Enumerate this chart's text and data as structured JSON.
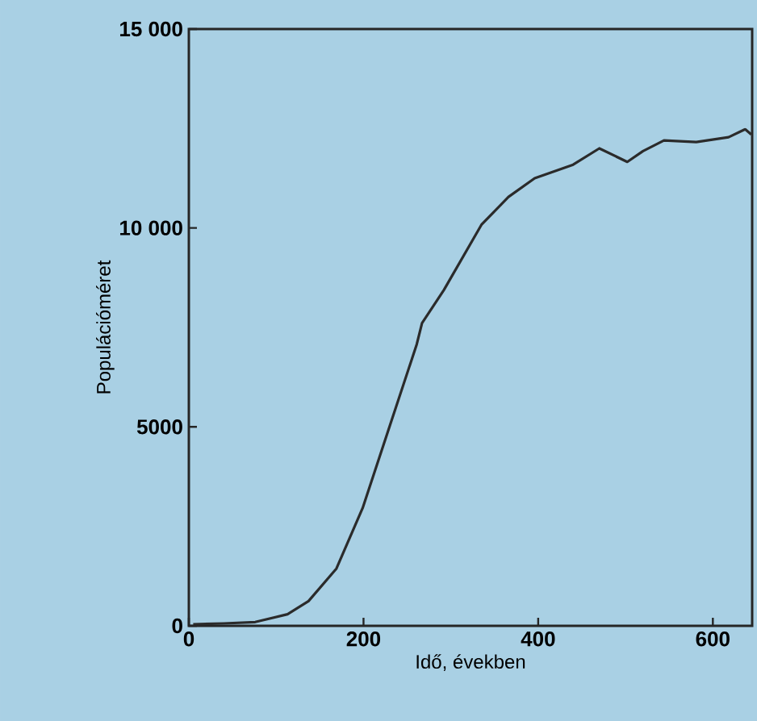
{
  "chart_data": {
    "type": "line",
    "xlabel": "Idő, években",
    "ylabel": "Populációméret",
    "xlim": [
      0,
      645
    ],
    "ylim": [
      0,
      15000
    ],
    "xticks": [
      0,
      200,
      400,
      600
    ],
    "yticks": [
      {
        "value": 0,
        "label": "0"
      },
      {
        "value": 5000,
        "label": "5000"
      },
      {
        "value": 10000,
        "label": "10 000"
      },
      {
        "value": 15000,
        "label": "15 000"
      }
    ],
    "grid": false,
    "marker": "none",
    "line_style": "solid",
    "series": [
      {
        "color": "#2b2b2b",
        "x": [
          5,
          40,
          76,
          113,
          137,
          169,
          199,
          230,
          261,
          267,
          292,
          335,
          366,
          396,
          440,
          470,
          502,
          520,
          544,
          581,
          618,
          637,
          644
        ],
        "values": [
          40,
          60,
          95,
          290,
          620,
          1440,
          2960,
          5020,
          7080,
          7610,
          8440,
          10080,
          10780,
          11250,
          11590,
          12000,
          11660,
          11930,
          12200,
          12160,
          12280,
          12480,
          12350
        ]
      }
    ]
  }
}
